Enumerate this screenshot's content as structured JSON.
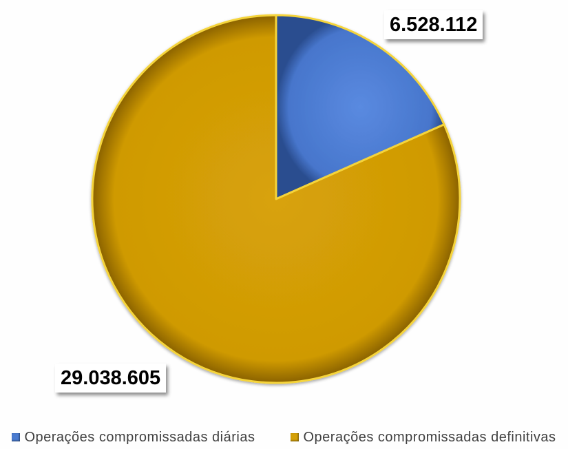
{
  "chart_data": {
    "type": "pie",
    "title": "",
    "categories": [
      "Operações compromissadas diárias",
      "Operações compromissadas definitivas"
    ],
    "values": [
      6528112,
      29038605
    ],
    "value_labels": [
      "6.528.112",
      "29.038.605"
    ],
    "colors": [
      "#4a7bd0",
      "#d4a007"
    ],
    "start_angle_deg": 0,
    "direction": "clockwise",
    "legend_position": "bottom",
    "grid": false
  },
  "legend": {
    "items": [
      {
        "label": "Operações compromissadas diárias",
        "color": "#4a7bd0"
      },
      {
        "label": "Operações compromissadas definitivas",
        "color": "#d4a007"
      }
    ]
  }
}
